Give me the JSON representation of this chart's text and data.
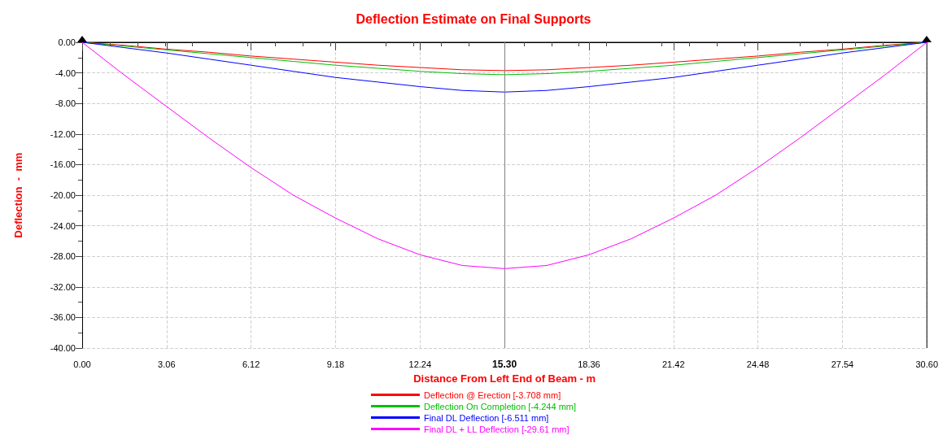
{
  "chart_data": {
    "type": "line",
    "title": "Deflection Estimate on Final Supports",
    "xlabel": "Distance From Left End of Beam - m",
    "ylabel": "Deflection  -  mm",
    "x": [
      0,
      1.53,
      3.06,
      4.59,
      6.12,
      7.65,
      9.18,
      10.71,
      12.24,
      13.77,
      15.3,
      16.83,
      18.36,
      19.89,
      21.42,
      22.95,
      24.48,
      26.01,
      27.54,
      29.07,
      30.6
    ],
    "series": [
      {
        "name": "Deflection @ Erection [-3.708 mm]",
        "color": "#ff0000",
        "values": [
          0,
          -0.4,
          -0.9,
          -1.3,
          -1.8,
          -2.2,
          -2.6,
          -3.0,
          -3.3,
          -3.6,
          -3.708,
          -3.6,
          -3.3,
          -3.0,
          -2.6,
          -2.2,
          -1.8,
          -1.3,
          -0.9,
          -0.4,
          0
        ]
      },
      {
        "name": "Deflection On Completion [-4.244 mm]",
        "color": "#00c000",
        "values": [
          0,
          -0.5,
          -1.0,
          -1.5,
          -2.0,
          -2.5,
          -3.0,
          -3.4,
          -3.8,
          -4.1,
          -4.244,
          -4.1,
          -3.8,
          -3.4,
          -3.0,
          -2.5,
          -2.0,
          -1.5,
          -1.0,
          -0.5,
          0
        ]
      },
      {
        "name": "Final DL Deflection [-6.511 mm]",
        "color": "#0000ff",
        "values": [
          0,
          -0.7,
          -1.4,
          -2.2,
          -3.0,
          -3.8,
          -4.6,
          -5.2,
          -5.8,
          -6.3,
          -6.511,
          -6.3,
          -5.8,
          -5.2,
          -4.6,
          -3.8,
          -3.0,
          -2.2,
          -1.4,
          -0.7,
          0
        ]
      },
      {
        "name": "Final DL + LL Deflection [-29.61 mm]",
        "color": "#ff00ff",
        "values": [
          0,
          -4.3,
          -8.4,
          -12.5,
          -16.4,
          -20.0,
          -23.0,
          -25.7,
          -27.8,
          -29.2,
          -29.61,
          -29.2,
          -27.8,
          -25.7,
          -23.0,
          -20.0,
          -16.4,
          -12.5,
          -8.4,
          -4.3,
          0
        ]
      }
    ],
    "xlim": [
      0,
      30.6
    ],
    "xticks": [
      {
        "value": 0,
        "label": "0.00"
      },
      {
        "value": 3.06,
        "label": "3.06"
      },
      {
        "value": 6.12,
        "label": "6.12"
      },
      {
        "value": 9.18,
        "label": "9.18"
      },
      {
        "value": 12.24,
        "label": "12.24"
      },
      {
        "value": 15.3,
        "label": "15.30"
      },
      {
        "value": 18.36,
        "label": "18.36"
      },
      {
        "value": 21.42,
        "label": "21.42"
      },
      {
        "value": 24.48,
        "label": "24.48"
      },
      {
        "value": 27.54,
        "label": "27.54"
      },
      {
        "value": 30.6,
        "label": "30.60"
      }
    ],
    "ylim": [
      -40,
      0
    ],
    "yticks": [
      {
        "value": 0,
        "label": "0.00"
      },
      {
        "value": -4,
        "label": "-4.00"
      },
      {
        "value": -8,
        "label": "-8.00"
      },
      {
        "value": -12,
        "label": "-12.00"
      },
      {
        "value": -16,
        "label": "-16.00"
      },
      {
        "value": -20,
        "label": "-20.00"
      },
      {
        "value": -24,
        "label": "-24.00"
      },
      {
        "value": -28,
        "label": "-28.00"
      },
      {
        "value": -32,
        "label": "-32.00"
      },
      {
        "value": -36,
        "label": "-36.00"
      },
      {
        "value": -40,
        "label": "-40.00"
      }
    ],
    "ref_lines": [
      {
        "axis": "x",
        "value": 15.3,
        "color": "#808080"
      }
    ],
    "grid": true,
    "legend": "bottom",
    "marker": "none",
    "line_style": "solid"
  }
}
